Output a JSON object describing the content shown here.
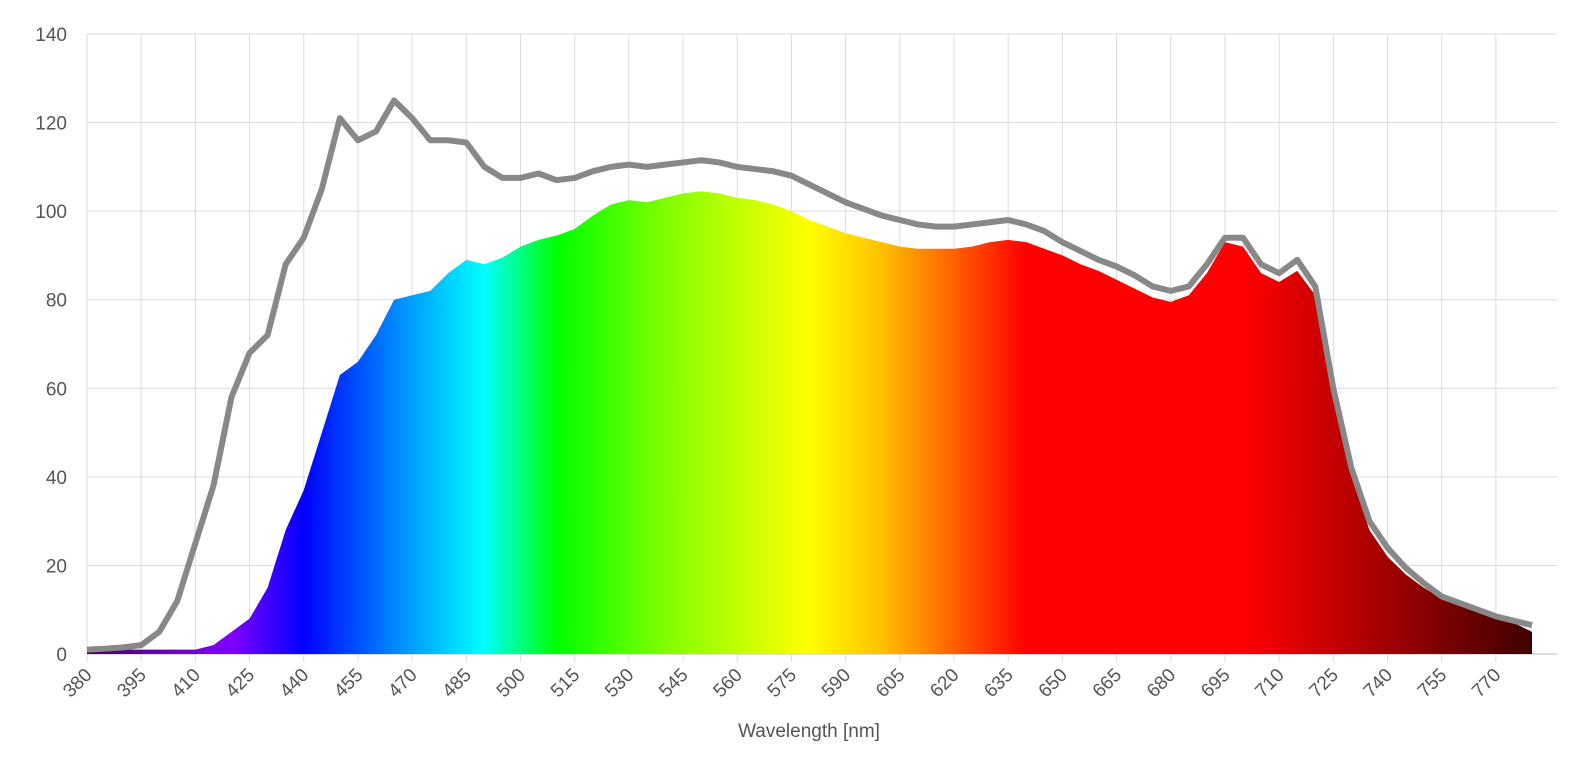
{
  "chart_data": {
    "type": "line",
    "xlabel": "Wavelength [nm]",
    "x": [
      380,
      385,
      390,
      395,
      400,
      405,
      410,
      415,
      420,
      425,
      430,
      435,
      440,
      445,
      450,
      455,
      460,
      465,
      470,
      475,
      480,
      485,
      490,
      495,
      500,
      505,
      510,
      515,
      520,
      525,
      530,
      535,
      540,
      545,
      550,
      555,
      560,
      565,
      570,
      575,
      580,
      585,
      590,
      595,
      600,
      605,
      610,
      615,
      620,
      625,
      630,
      635,
      640,
      645,
      650,
      655,
      660,
      665,
      670,
      675,
      680,
      685,
      690,
      695,
      700,
      705,
      710,
      715,
      720,
      725,
      730,
      735,
      740,
      745,
      750,
      755,
      760,
      765,
      770,
      775,
      780
    ],
    "series": [
      {
        "type": "area",
        "values": [
          1,
          1,
          1,
          1,
          1,
          1,
          1,
          2,
          5,
          8,
          15,
          28,
          37,
          50,
          63,
          66,
          72,
          80,
          81,
          82,
          86,
          89,
          88,
          89.5,
          92,
          93.5,
          94.5,
          96,
          99,
          101.5,
          102.5,
          102,
          103,
          104,
          104.5,
          104,
          103,
          102.5,
          101.5,
          100,
          98,
          96.5,
          95,
          94,
          93,
          92,
          91.5,
          91.5,
          91.5,
          92,
          93,
          93.5,
          93,
          91.5,
          90,
          88,
          86.5,
          84.5,
          82.5,
          80.5,
          79.5,
          81,
          86,
          93,
          92,
          86,
          84,
          86.5,
          81,
          60,
          40,
          28,
          22,
          18,
          15,
          12.5,
          11,
          9.5,
          8,
          7,
          5
        ]
      },
      {
        "type": "line",
        "color": "#888888",
        "values": [
          1,
          1.2,
          1.5,
          2,
          5,
          12,
          25,
          38,
          58,
          68,
          72,
          88,
          94,
          105,
          121,
          116,
          118,
          125,
          121,
          116,
          116,
          115.5,
          110,
          107.5,
          107.5,
          108.5,
          107,
          107.5,
          109,
          110,
          110.5,
          110,
          110.5,
          111,
          111.5,
          111,
          110,
          109.5,
          109,
          108,
          106,
          104,
          102,
          100.5,
          99,
          98,
          97,
          96.5,
          96.5,
          97,
          97.5,
          98,
          97,
          95.5,
          93,
          91,
          89,
          87.5,
          85.5,
          83,
          82,
          83,
          88,
          94,
          94,
          88,
          86,
          89,
          83,
          60,
          42,
          30,
          24,
          19.5,
          16,
          13,
          11.5,
          10,
          8.5,
          7.5,
          6.5
        ]
      }
    ],
    "xlim": [
      380,
      780
    ],
    "ylim": [
      0,
      140
    ],
    "xticks": [
      380,
      395,
      410,
      425,
      440,
      455,
      470,
      485,
      500,
      515,
      530,
      545,
      560,
      575,
      590,
      605,
      620,
      635,
      650,
      665,
      680,
      695,
      710,
      725,
      740,
      755,
      770
    ],
    "yticks": [
      0,
      20,
      40,
      60,
      80,
      100,
      120,
      140
    ],
    "grid": true
  }
}
